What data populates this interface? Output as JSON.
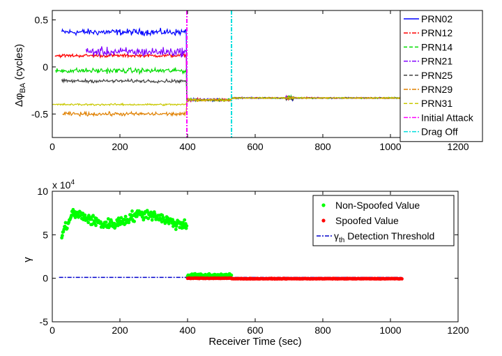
{
  "chart_data": [
    {
      "type": "line",
      "ylabel_main": "Δφ",
      "ylabel_sub": "BA",
      "ylabel_unit": "(cycles)",
      "xlim": [
        0,
        1200
      ],
      "ylim": [
        -0.75,
        0.6
      ],
      "xticks": [
        0,
        200,
        400,
        600,
        800,
        1000,
        1200
      ],
      "yticks": [
        -0.5,
        0,
        0.5
      ],
      "ytick_labels": [
        "-0.5",
        "0",
        "0.5"
      ],
      "grid": false,
      "legend_position": "top-right",
      "series": [
        {
          "name": "PRN02",
          "color": "#0000ff",
          "dash": "solid",
          "pre_level": 0.37,
          "pre_noise": 0.05,
          "start": 28
        },
        {
          "name": "PRN12",
          "color": "#ff0000",
          "dash": "dashdot",
          "pre_level": 0.12,
          "pre_noise": 0.025,
          "start": 8
        },
        {
          "name": "PRN14",
          "color": "#00dd00",
          "dash": "dashed",
          "pre_level": -0.04,
          "pre_noise": 0.04,
          "start": 10
        },
        {
          "name": "PRN21",
          "color": "#8000ff",
          "dash": "dashdot",
          "pre_level": 0.16,
          "pre_noise": 0.07,
          "start": 100
        },
        {
          "name": "PRN25",
          "color": "#404040",
          "dash": "dashed",
          "pre_level": -0.15,
          "pre_noise": 0.025,
          "start": 28
        },
        {
          "name": "PRN29",
          "color": "#e08000",
          "dash": "dashdot",
          "pre_level": -0.5,
          "pre_noise": 0.03,
          "start": 30
        },
        {
          "name": "PRN31",
          "color": "#c8c800",
          "dash": "dashed",
          "pre_level": -0.4,
          "pre_noise": 0.015,
          "start": 0
        }
      ],
      "post_level": -0.33,
      "transition_level": -0.35,
      "events": [
        {
          "name": "Initial Attack",
          "x": 398,
          "color": "#ff00ff"
        },
        {
          "name": "Drag Off",
          "x": 530,
          "color": "#00dddd"
        }
      ]
    },
    {
      "type": "scatter",
      "ylabel": "γ",
      "xlabel": "Receiver Time (sec)",
      "exponent_label": "x 10",
      "exponent_power": "4",
      "xlim": [
        0,
        1200
      ],
      "ylim": [
        -5,
        10
      ],
      "xticks": [
        0,
        200,
        400,
        600,
        800,
        1000,
        1200
      ],
      "yticks": [
        -5,
        0,
        5,
        10
      ],
      "grid": false,
      "legend_position": "top-right",
      "series": [
        {
          "name": "Non-Spoofed Value",
          "color": "#00ff00",
          "segments": [
            {
              "x0": 28,
              "x1": 398,
              "level": 6.8,
              "noise": 0.9
            },
            {
              "x0": 400,
              "x1": 530,
              "level": 0.35,
              "noise": 0.25
            }
          ]
        },
        {
          "name": "Spoofed Value",
          "color": "#ff0000",
          "segments": [
            {
              "x0": 400,
              "x1": 530,
              "level": 0.0,
              "noise": 0.05
            },
            {
              "x0": 530,
              "x1": 1035,
              "level": -0.05,
              "noise": 0.05
            }
          ]
        }
      ],
      "threshold": {
        "name_main": "γ",
        "name_sub": "th",
        "name_rest": " Detection Threshold",
        "value": 0.1,
        "color": "#0000cc",
        "x0": 20,
        "x1": 1035
      }
    }
  ]
}
